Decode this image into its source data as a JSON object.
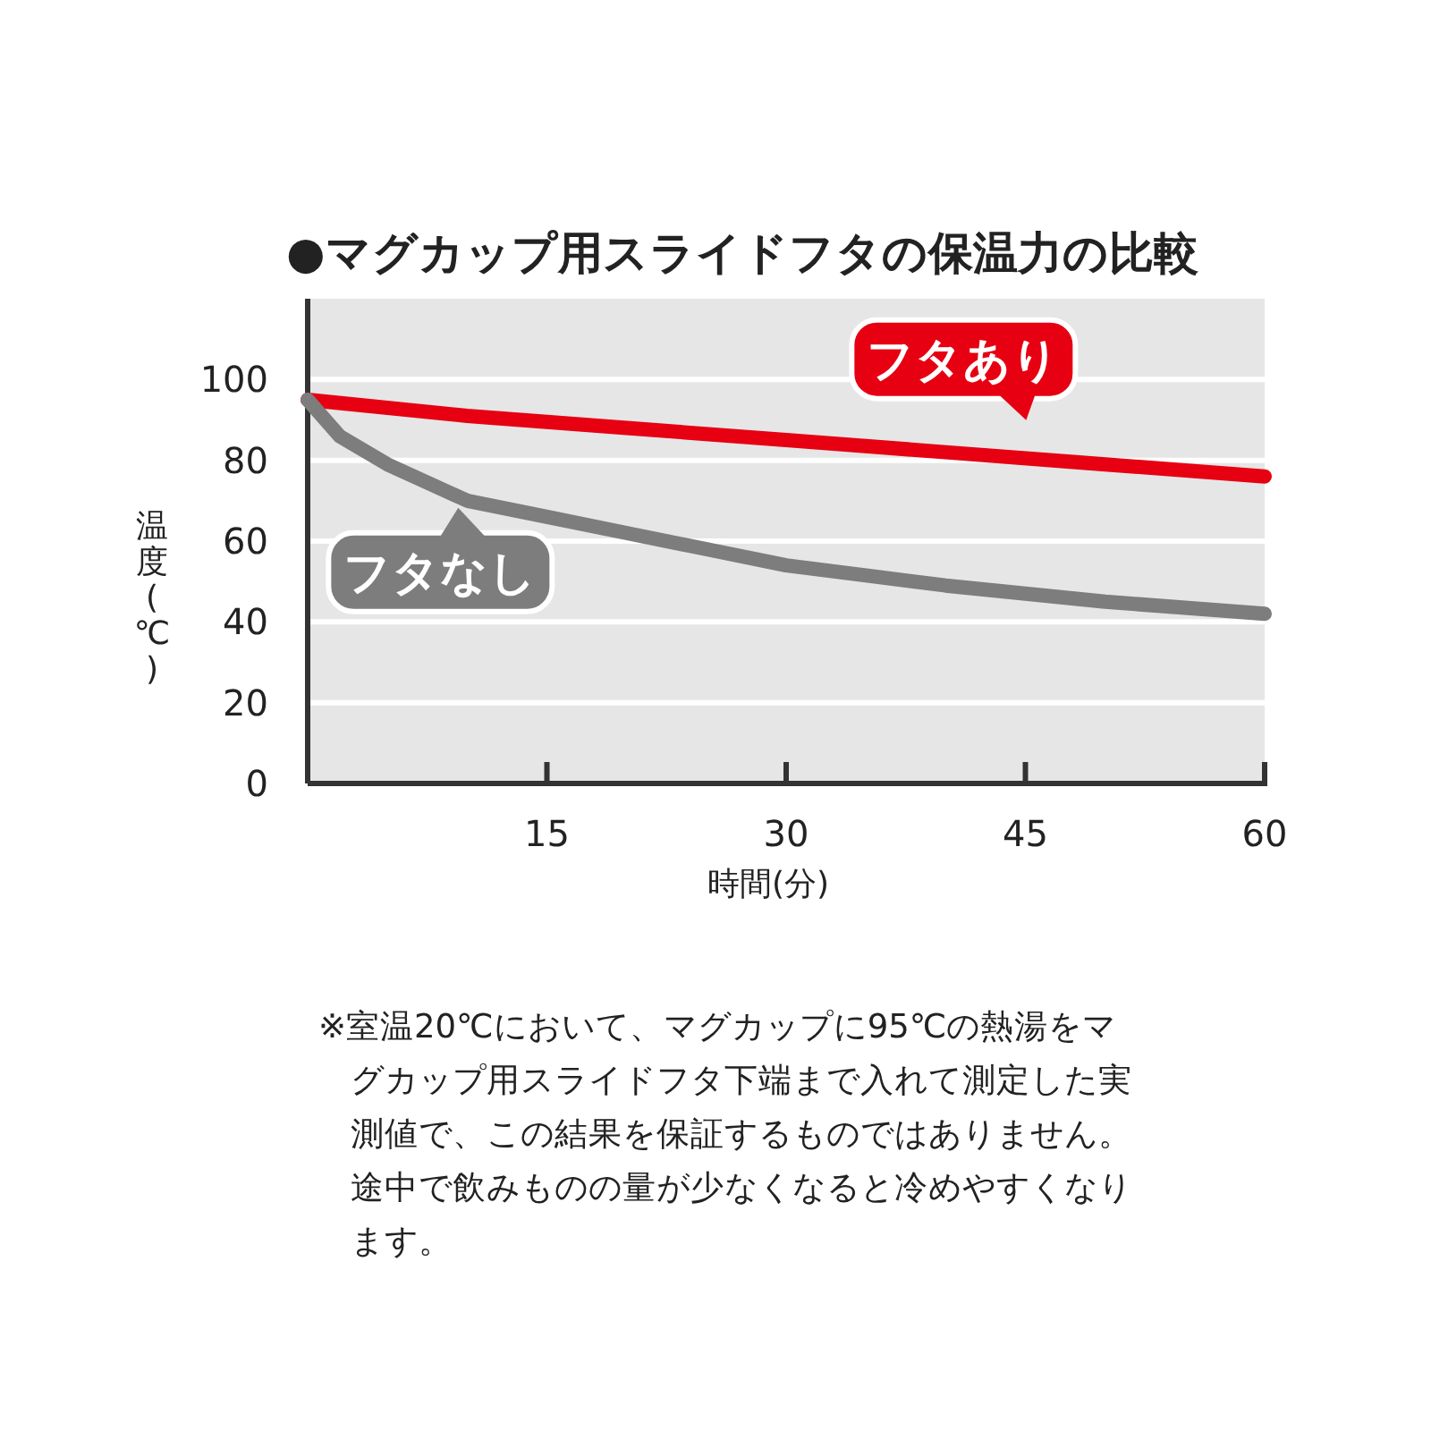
{
  "chart_data": {
    "type": "line",
    "title": "●マグカップ用スライドフタの保温力の比較",
    "xlabel": "時間(分)",
    "ylabel": "温度(℃)",
    "xlim": [
      0,
      60
    ],
    "ylim": [
      0,
      120
    ],
    "xticks": [
      15,
      30,
      45,
      60
    ],
    "yticks": [
      0,
      20,
      40,
      60,
      80,
      100
    ],
    "grid": "y",
    "marker": "none",
    "line_style": "solid",
    "series": [
      {
        "name": "フタあり",
        "color": "#e60012",
        "x": [
          0,
          10,
          20,
          30,
          40,
          50,
          60
        ],
        "values": [
          95,
          91,
          88,
          85,
          82,
          79,
          76
        ]
      },
      {
        "name": "フタなし",
        "color": "#7d7d7d",
        "x": [
          0,
          2,
          5,
          10,
          15,
          20,
          25,
          30,
          35,
          40,
          45,
          50,
          55,
          60
        ],
        "values": [
          95,
          86,
          79,
          70,
          66,
          62,
          58,
          54,
          51.5,
          49,
          47,
          45,
          43.5,
          42
        ]
      }
    ],
    "annotations": [
      "※室温20℃において、マグカップに95℃の熱湯をマグカップ用スライドフタ下端まで入れて測定した実測値で、この結果を保証するものではありません。途中で飲みものの量が少なくなると冷めやすくなります。"
    ]
  }
}
